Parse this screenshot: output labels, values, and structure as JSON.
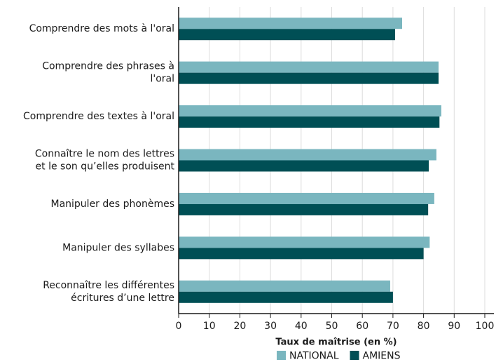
{
  "chart_data": {
    "type": "hbar",
    "xlabel": "Taux de maîtrise (en %)",
    "categories": [
      [
        "Comprendre des mots à l'oral"
      ],
      [
        "Comprendre des phrases à",
        "l'oral"
      ],
      [
        "Comprendre des textes à l'oral"
      ],
      [
        "Connaître le nom des lettres",
        "et le son qu’elles produisent"
      ],
      [
        "Manipuler des phonèmes"
      ],
      [
        "Manipuler des syllabes"
      ],
      [
        "Reconnaître les différentes",
        "écritures d’une lettre"
      ]
    ],
    "series": [
      {
        "name": "NATIONAL",
        "color": "#7ab6bf",
        "values": [
          73.0,
          84.9,
          85.8,
          84.2,
          83.5,
          82.0,
          69.1
        ]
      },
      {
        "name": "AMIENS",
        "color": "#004f55",
        "values": [
          70.7,
          84.9,
          85.2,
          81.7,
          81.5,
          80.0,
          70.0
        ]
      }
    ],
    "xlim": [
      0,
      100
    ],
    "xticks": [
      0,
      10,
      20,
      30,
      40,
      50,
      60,
      70,
      80,
      90,
      100
    ],
    "grid": true
  }
}
